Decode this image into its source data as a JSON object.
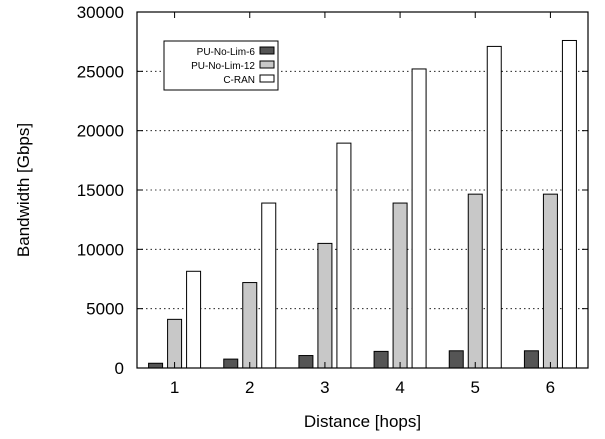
{
  "chart_data": {
    "type": "bar",
    "xlabel": "Distance [hops]",
    "ylabel": "Bandwidth [Gbps]",
    "categories": [
      "1",
      "2",
      "3",
      "4",
      "5",
      "6"
    ],
    "ylim": [
      0,
      30000
    ],
    "yticks": [
      "0",
      "5000",
      "10000",
      "15000",
      "20000",
      "25000",
      "30000"
    ],
    "grid": "horizontal dotted",
    "legend_placement": "top-left",
    "series": [
      {
        "name": "PU-No-Lim-6",
        "color": "#555555",
        "values": [
          400,
          750,
          1050,
          1400,
          1450,
          1450
        ]
      },
      {
        "name": "PU-No-Lim-12",
        "color": "#c8c8c8",
        "values": [
          4100,
          7200,
          10500,
          13900,
          14650,
          14650
        ]
      },
      {
        "name": "C-RAN",
        "color": "#ffffff",
        "values": [
          8150,
          13900,
          18950,
          25200,
          27100,
          27600
        ]
      }
    ]
  }
}
